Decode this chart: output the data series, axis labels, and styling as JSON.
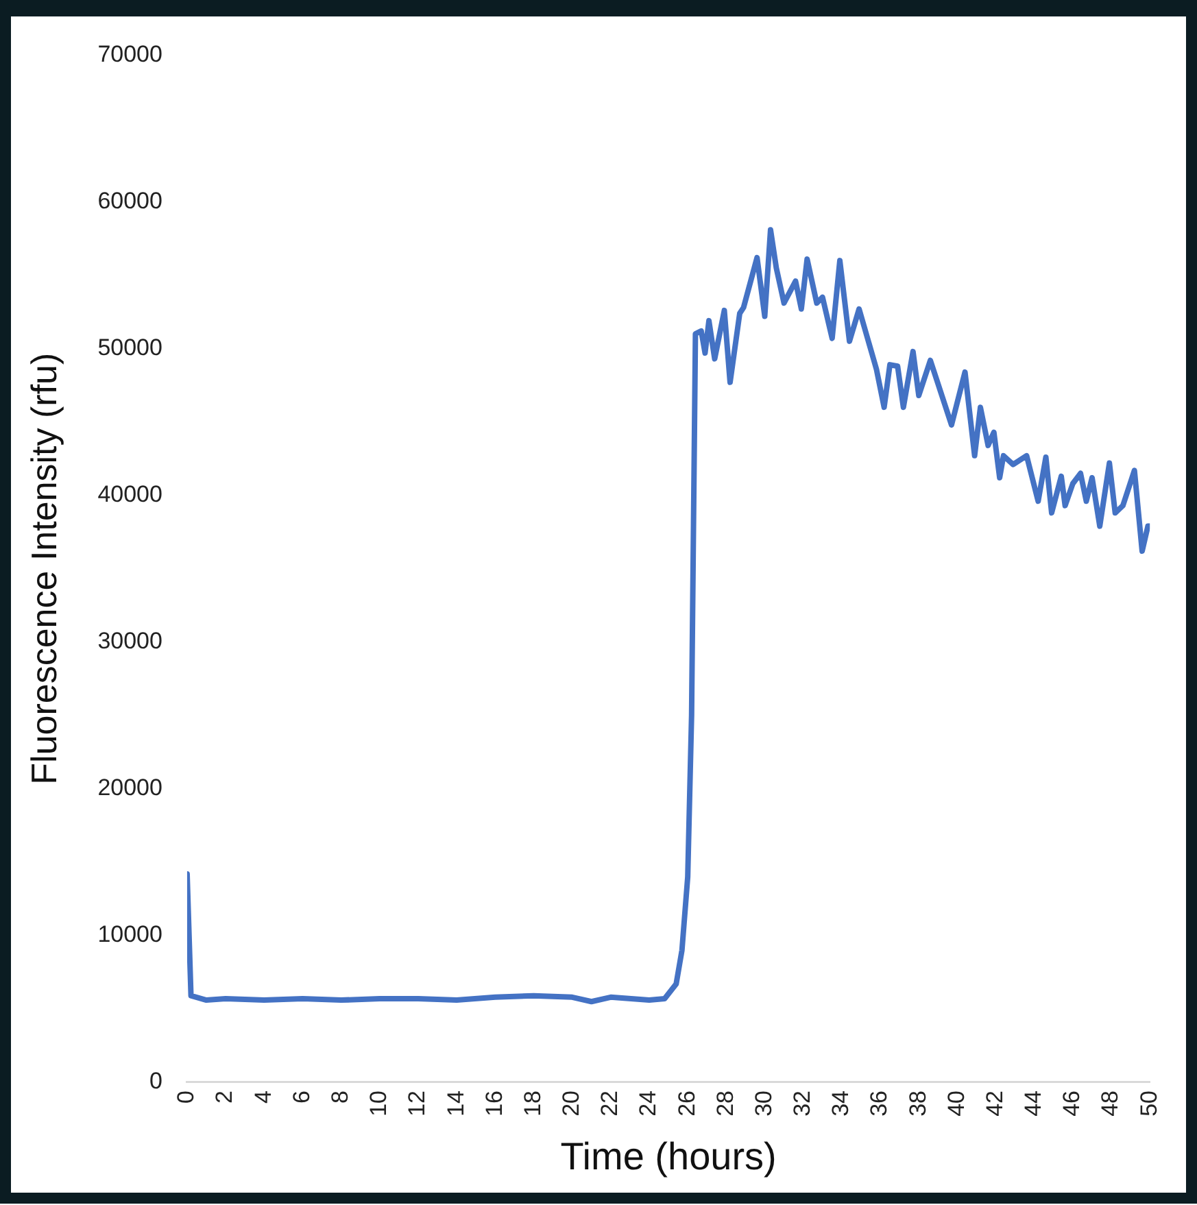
{
  "chart_data": {
    "type": "line",
    "xlabel": "Time (hours)",
    "ylabel": "Fluorescence Intensity (rfu)",
    "x": [
      0,
      0.2,
      1,
      2,
      4,
      6,
      8,
      10,
      12,
      14,
      16,
      18,
      20,
      21,
      22,
      24,
      24.8,
      25.4,
      25.7,
      26.0,
      26.2,
      26.4,
      26.7,
      26.9,
      27.1,
      27.4,
      27.9,
      28.2,
      28.7,
      28.9,
      29.6,
      30.0,
      30.3,
      30.6,
      31.0,
      31.6,
      31.9,
      32.2,
      32.7,
      33.0,
      33.5,
      33.9,
      34.4,
      34.9,
      35.8,
      36.2,
      36.5,
      36.9,
      37.2,
      37.7,
      38.0,
      38.6,
      39.7,
      40.4,
      40.9,
      41.2,
      41.6,
      41.9,
      42.2,
      42.4,
      42.9,
      43.6,
      44.2,
      44.6,
      44.9,
      45.4,
      45.6,
      46.0,
      46.4,
      46.7,
      47.0,
      47.4,
      47.9,
      48.2,
      48.6,
      49.2,
      49.6,
      49.9,
      50
    ],
    "series": [
      {
        "color": "#4472c4",
        "values": [
          14200,
          5900,
          5600,
          5700,
          5600,
          5700,
          5600,
          5700,
          5700,
          5600,
          5800,
          5900,
          5800,
          5500,
          5800,
          5600,
          5700,
          6700,
          9000,
          14000,
          25000,
          51000,
          51200,
          49700,
          51900,
          49300,
          52600,
          47700,
          52400,
          52800,
          56200,
          52200,
          58100,
          55500,
          53100,
          54600,
          52700,
          56100,
          53100,
          53500,
          50700,
          56000,
          50500,
          52700,
          48600,
          46000,
          48900,
          48800,
          46000,
          49800,
          46800,
          49200,
          44800,
          48400,
          42700,
          46000,
          43400,
          44300,
          41200,
          42700,
          42100,
          42700,
          39600,
          42600,
          38800,
          41300,
          39300,
          40800,
          41500,
          39600,
          41200,
          37900,
          42200,
          38800,
          39300,
          41700,
          36200,
          37900,
          37900
        ]
      }
    ],
    "xlim": [
      0,
      50
    ],
    "xticks": [
      0,
      2,
      4,
      6,
      8,
      10,
      12,
      14,
      16,
      18,
      20,
      22,
      24,
      26,
      28,
      30,
      32,
      34,
      36,
      38,
      40,
      42,
      44,
      46,
      48,
      50
    ],
    "ylim": [
      0,
      70000
    ],
    "yticks": [
      0,
      10000,
      20000,
      30000,
      40000,
      50000,
      60000,
      70000
    ],
    "grid": false,
    "legend": false,
    "marker": "none",
    "line_style": "solid"
  }
}
